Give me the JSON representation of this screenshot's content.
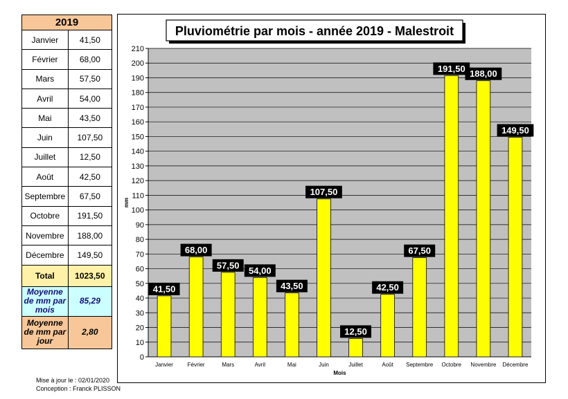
{
  "table": {
    "year": "2019",
    "rows": [
      {
        "month": "Janvier",
        "value": "41,50"
      },
      {
        "month": "Février",
        "value": "68,00"
      },
      {
        "month": "Mars",
        "value": "57,50"
      },
      {
        "month": "Avril",
        "value": "54,00"
      },
      {
        "month": "Mai",
        "value": "43,50"
      },
      {
        "month": "Juin",
        "value": "107,50"
      },
      {
        "month": "Juillet",
        "value": "12,50"
      },
      {
        "month": "Août",
        "value": "42,50"
      },
      {
        "month": "Septembre",
        "value": "67,50"
      },
      {
        "month": "Octobre",
        "value": "191,50"
      },
      {
        "month": "Novembre",
        "value": "188,00"
      },
      {
        "month": "Décembre",
        "value": "149,50"
      }
    ],
    "total_label": "Total",
    "total_value": "1023,50",
    "avg_month_label": "Moyenne de mm par mois",
    "avg_month_value": "85,29",
    "avg_day_label": "Moyenne de mm par jour",
    "avg_day_value": "2,80"
  },
  "footer": {
    "updated": "Mise à jour le : 02/01/2020",
    "author": "Conception : Franck PLISSON"
  },
  "colors": {
    "bar": "#ffff00",
    "plot_bg": "#c0c0c0",
    "label_bg": "#000000",
    "label_text": "#ffffff"
  },
  "chart_data": {
    "type": "bar",
    "title": "Pluviométrie par mois - année 2019 - Malestroit",
    "xlabel": "Mois",
    "ylabel": "mm",
    "ylim": [
      0,
      210
    ],
    "ytick_step": 10,
    "grid": true,
    "categories": [
      "Janvier",
      "Février",
      "Mars",
      "Avril",
      "Mai",
      "Juin",
      "Juillet",
      "Août",
      "Septembre",
      "Octobre",
      "Novembre",
      "Décembre"
    ],
    "values": [
      41.5,
      68.0,
      57.5,
      54.0,
      43.5,
      107.5,
      12.5,
      42.5,
      67.5,
      191.5,
      188.0,
      149.5
    ],
    "data_labels": [
      "41,50",
      "68,00",
      "57,50",
      "54,00",
      "43,50",
      "107,50",
      "12,50",
      "42,50",
      "67,50",
      "191,50",
      "188,00",
      "149,50"
    ]
  }
}
